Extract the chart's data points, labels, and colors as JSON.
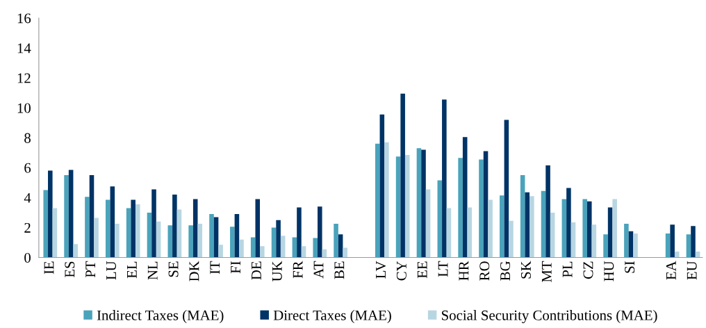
{
  "chart_data": {
    "type": "bar",
    "categories": [
      "IE",
      "ES",
      "PT",
      "LU",
      "EL",
      "NL",
      "SE",
      "DK",
      "IT",
      "FI",
      "DE",
      "UK",
      "FR",
      "AT",
      "BE",
      null,
      "LV",
      "CY",
      "EE",
      "LT",
      "HR",
      "RO",
      "BG",
      "SK",
      "MT",
      "PL",
      "CZ",
      "HU",
      "SI",
      null,
      "EA",
      "EU"
    ],
    "series": [
      {
        "name": "Indirect Taxes (MAE)",
        "color": "#4aa3bb",
        "values": [
          4.5,
          5.5,
          4.05,
          3.85,
          3.3,
          3.0,
          2.15,
          2.15,
          2.9,
          2.05,
          1.35,
          2.0,
          1.35,
          1.3,
          2.25,
          null,
          7.6,
          6.75,
          7.3,
          5.15,
          6.65,
          6.55,
          4.15,
          5.5,
          4.45,
          3.9,
          3.9,
          1.55,
          2.25,
          null,
          1.6,
          1.55
        ]
      },
      {
        "name": "Direct Taxes (MAE)",
        "color": "#003366",
        "values": [
          5.8,
          5.85,
          5.5,
          4.75,
          3.85,
          4.55,
          4.2,
          3.9,
          2.7,
          2.9,
          3.9,
          2.5,
          3.35,
          3.4,
          1.55,
          null,
          9.55,
          10.95,
          7.2,
          10.55,
          8.05,
          7.1,
          9.2,
          4.35,
          6.15,
          4.65,
          3.75,
          3.35,
          1.75,
          null,
          2.2,
          2.1
        ]
      },
      {
        "name": "Social Security Contributions (MAE)",
        "color": "#b7d6e2",
        "values": [
          3.3,
          0.9,
          2.65,
          2.25,
          3.55,
          2.4,
          3.2,
          2.25,
          0.85,
          1.2,
          0.75,
          1.45,
          0.75,
          0.55,
          0.65,
          null,
          7.7,
          6.85,
          4.55,
          3.3,
          3.35,
          3.85,
          2.45,
          4.1,
          3.0,
          2.35,
          2.2,
          3.9,
          1.6,
          null,
          0.4,
          0.4
        ]
      }
    ],
    "ylim": [
      0,
      16
    ],
    "yticks": [
      0,
      2,
      4,
      6,
      8,
      10,
      12,
      14,
      16
    ],
    "grid": false,
    "legend": "bottom"
  }
}
